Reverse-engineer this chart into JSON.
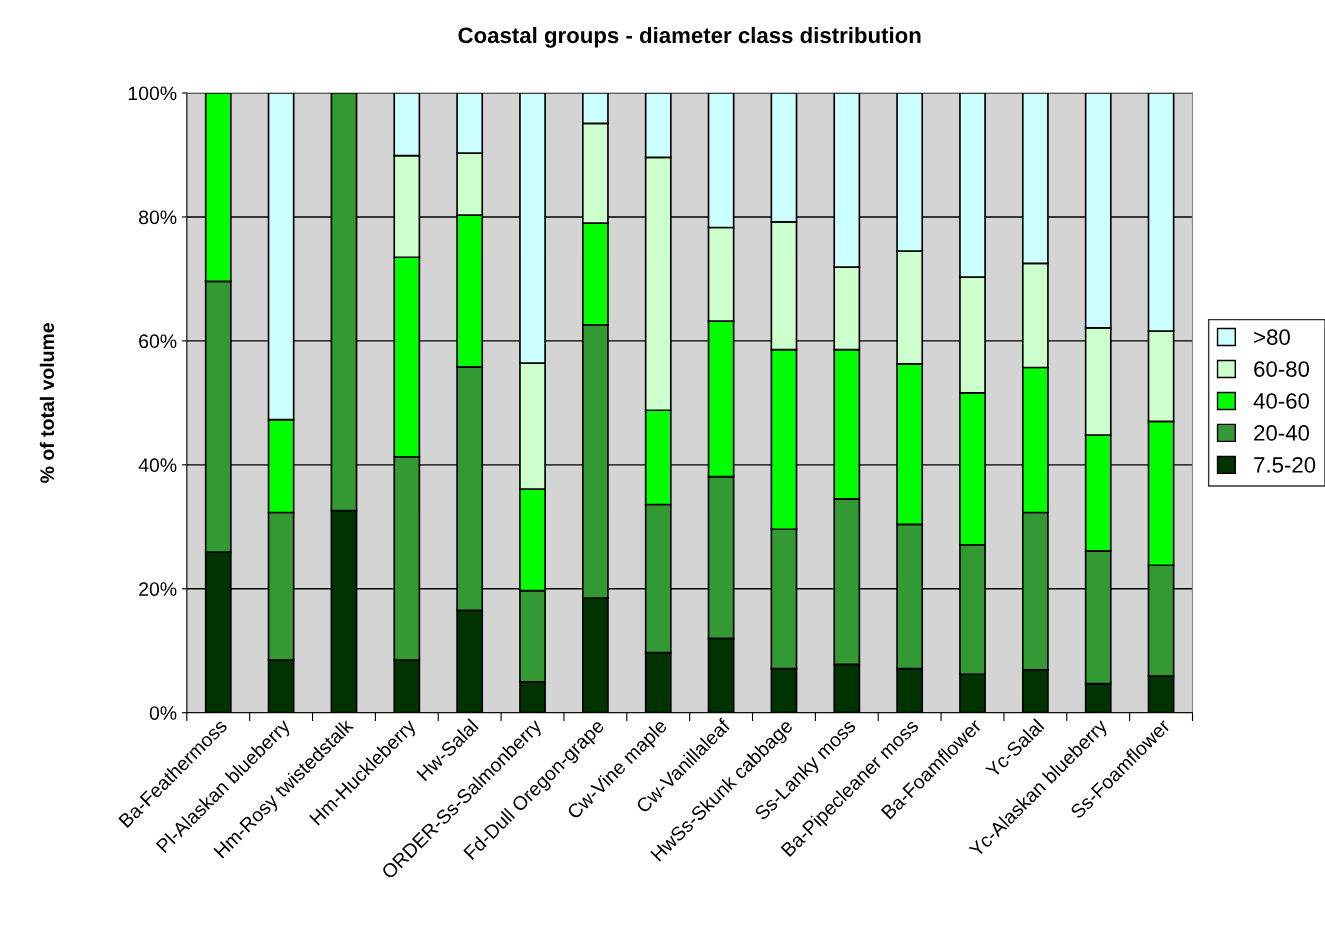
{
  "chart_data": {
    "type": "bar",
    "stacked": true,
    "title": "Coastal groups - diameter class distribution",
    "ylabel": "% of total volume",
    "categories": [
      "Ba-Feathermoss",
      "Pl-Alaskan blueberry",
      "Hm-Rosy twistedstalk",
      "Hm-Huckleberry",
      "Hw-Salal",
      "ORDER-Ss-Salmonberry",
      "Fd-Dull Oregon-grape",
      "Cw-Vine maple",
      "Cw-Vanillaleaf",
      "HwSs-Skunk cabbage",
      "Ss-Lanky moss",
      "Ba-Pipecleaner moss",
      "Ba-Foamflower",
      "Yc-Salal",
      "Yc-Alaskan blueberry",
      "Ss-Foamflower"
    ],
    "series": [
      {
        "name": "7.5-20",
        "color": "#003300",
        "values": [
          25.9,
          8.5,
          32.6,
          8.5,
          16.5,
          5.0,
          18.5,
          9.7,
          12.0,
          7.1,
          7.8,
          7.1,
          6.2,
          6.9,
          4.7,
          5.9
        ]
      },
      {
        "name": "20-40",
        "color": "#339933",
        "values": [
          43.7,
          23.8,
          67.4,
          32.8,
          39.3,
          14.7,
          44.1,
          23.9,
          26.1,
          22.5,
          26.7,
          23.3,
          20.9,
          25.4,
          21.4,
          17.9
        ]
      },
      {
        "name": "40-60",
        "color": "#00ff00",
        "values": [
          30.4,
          15.0,
          null,
          32.2,
          24.5,
          16.4,
          16.4,
          15.2,
          25.1,
          29.0,
          24.1,
          25.9,
          24.5,
          23.4,
          18.7,
          23.2
        ]
      },
      {
        "name": "60-80",
        "color": "#ccffcc",
        "values": [
          null,
          null,
          null,
          16.4,
          10.0,
          20.3,
          16.1,
          40.8,
          15.1,
          20.6,
          13.3,
          18.2,
          18.7,
          16.8,
          17.3,
          14.6
        ]
      },
      {
        "name": ">80",
        "color": "#ccffff",
        "values": [
          null,
          52.7,
          null,
          10.1,
          9.7,
          43.6,
          4.9,
          10.4,
          21.7,
          20.8,
          28.1,
          25.5,
          29.7,
          27.5,
          37.9,
          38.4
        ]
      }
    ],
    "ylim": [
      0,
      100
    ],
    "yticks": [
      {
        "value": 0,
        "label": "0%"
      },
      {
        "value": 20,
        "label": "20%"
      },
      {
        "value": 40,
        "label": "40%"
      },
      {
        "value": 60,
        "label": "60%"
      },
      {
        "value": 80,
        "label": "80%"
      },
      {
        "value": 100,
        "label": "100%"
      }
    ],
    "grid": "y",
    "legend": "right"
  }
}
